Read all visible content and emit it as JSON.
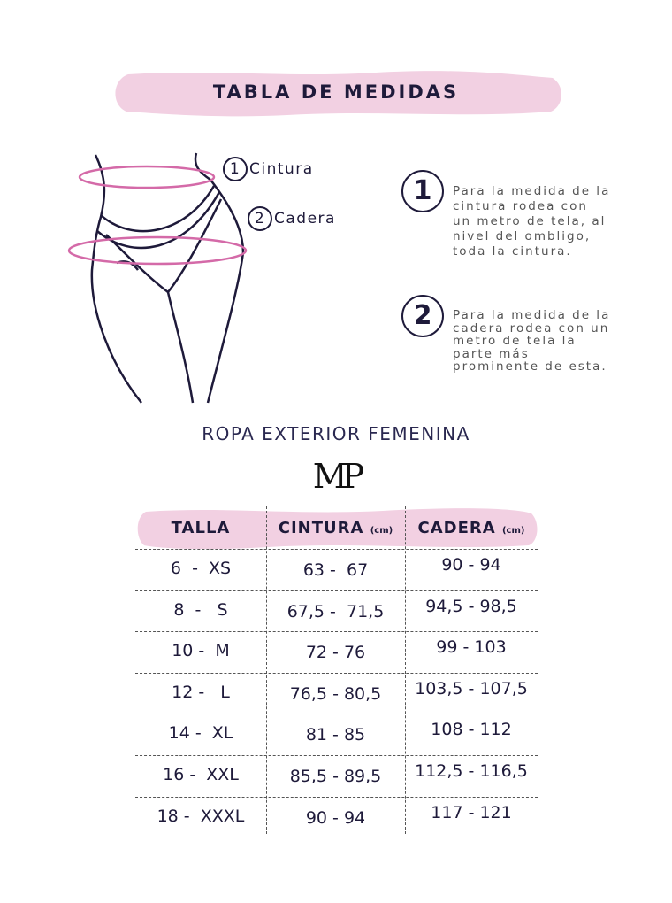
{
  "title": "TABLA DE MEDIDAS",
  "figure": {
    "label1_num": "1",
    "label1": "Cintura",
    "label2_num": "2",
    "label2": "Cadera"
  },
  "instructions": [
    {
      "num": "1",
      "text": "Para la medida de la cintura rodea con un metro de tela, al nivel del ombligo, toda la cintura."
    },
    {
      "num": "2",
      "text": "Para la medida de la cadera rodea con un metro de tela la parte más prominente de esta."
    }
  ],
  "subtitle": "ROPA EXTERIOR FEMENINA",
  "logo": "MP",
  "colors": {
    "pink": "#f2d0e2",
    "ring": "#d46aa8",
    "navy": "#1e1a3a"
  },
  "table": {
    "headers": [
      {
        "label": "TALLA",
        "unit": ""
      },
      {
        "label": "CINTURA",
        "unit": "(cm)"
      },
      {
        "label": "CADERA",
        "unit": "(cm)"
      }
    ],
    "rows": [
      [
        "6  -  XS",
        "63 -  67",
        "90 - 94"
      ],
      [
        "8  -   S",
        "67,5 -  71,5",
        "94,5 - 98,5"
      ],
      [
        "10 -  M",
        "72 - 76",
        "99 - 103"
      ],
      [
        "12 -   L",
        "76,5 - 80,5",
        "103,5 - 107,5"
      ],
      [
        "14 -  XL",
        "81 - 85",
        "108 - 112"
      ],
      [
        "16 -  XXL",
        "85,5 - 89,5",
        "112,5 - 116,5"
      ],
      [
        "18 -  XXXL",
        "90 - 94",
        "117 - 121"
      ]
    ]
  }
}
